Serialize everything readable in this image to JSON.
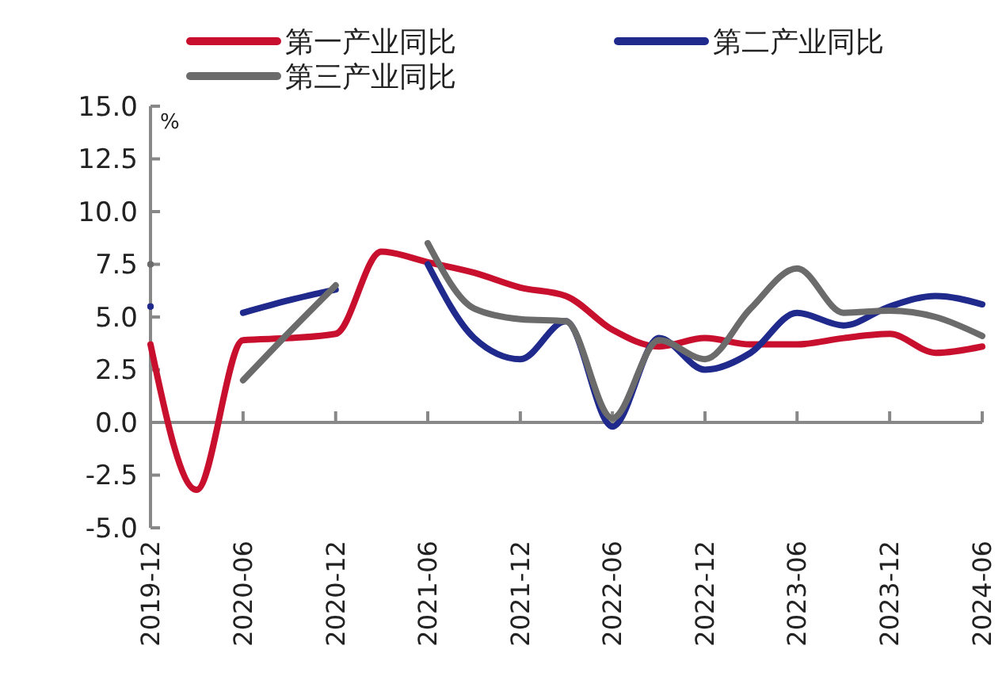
{
  "chart_data": {
    "type": "line",
    "ylabel": "%",
    "x": [
      "2019-12",
      "2020-03",
      "2020-06",
      "2020-09",
      "2020-12",
      "2021-03",
      "2021-06",
      "2021-09",
      "2021-12",
      "2022-03",
      "2022-06",
      "2022-09",
      "2022-12",
      "2023-03",
      "2023-06",
      "2023-09",
      "2023-12",
      "2024-03",
      "2024-06"
    ],
    "series": [
      {
        "name": "第一产业同比",
        "color": "#c8102e",
        "values": [
          3.7,
          -3.2,
          3.9,
          4.0,
          4.2,
          8.1,
          7.6,
          7.1,
          6.4,
          6.0,
          4.4,
          3.6,
          4.0,
          3.7,
          3.7,
          4.0,
          4.2,
          3.3,
          3.6
        ]
      },
      {
        "name": "第二产业同比",
        "color": "#1f2a8c",
        "values": [
          5.5,
          null,
          5.2,
          5.8,
          6.3,
          null,
          7.5,
          4.0,
          3.0,
          4.8,
          -0.2,
          4.0,
          2.5,
          3.3,
          5.2,
          4.6,
          5.5,
          6.0,
          5.6
        ]
      },
      {
        "name": "第三产业同比",
        "color": "#6b6b6b",
        "values": [
          7.5,
          null,
          2.0,
          4.3,
          6.5,
          null,
          8.5,
          5.4,
          4.9,
          4.8,
          0.2,
          3.9,
          3.0,
          5.4,
          7.3,
          5.2,
          5.3,
          5.0,
          4.1
        ]
      }
    ],
    "xlim": [
      "2019-12",
      "2024-06"
    ],
    "xticks": [
      "2019-12",
      "2020-06",
      "2020-12",
      "2021-06",
      "2021-12",
      "2022-06",
      "2022-12",
      "2023-06",
      "2023-12",
      "2024-06"
    ],
    "ylim": [
      -5,
      15
    ],
    "yticks": [
      {
        "value": -5,
        "label": "-5.0"
      },
      {
        "value": -2.5,
        "label": "-2.5"
      },
      {
        "value": 0,
        "label": "0.0"
      },
      {
        "value": 2.5,
        "label": "2.5"
      },
      {
        "value": 5,
        "label": "5.0"
      },
      {
        "value": 7.5,
        "label": "7.5"
      },
      {
        "value": 10,
        "label": "10.0"
      },
      {
        "value": 12.5,
        "label": "12.5"
      },
      {
        "value": 15,
        "label": "15.0"
      }
    ],
    "ref_lines": [
      {
        "axis": "y",
        "value": 0,
        "color": "#888888"
      }
    ],
    "grid": false,
    "legend": "top",
    "marker": "none",
    "line_style": "solid"
  }
}
